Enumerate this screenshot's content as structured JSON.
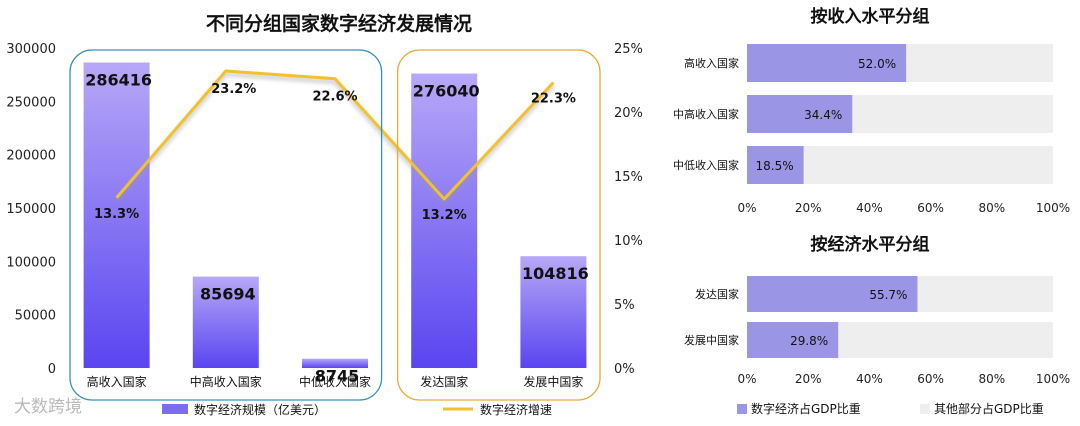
{
  "watermark": "大数跨境",
  "chart_data": [
    {
      "type": "bar",
      "title": "不同分组国家数字经济发展情况",
      "categories": [
        "高收入国家",
        "中高收入国家",
        "中低收入国家",
        "发达国家",
        "发展中国家"
      ],
      "series": [
        {
          "name": "数字经济规模（亿美元）",
          "type": "bar",
          "axis": "left",
          "values": [
            286416,
            85694,
            8745,
            276040,
            104816
          ],
          "labels": [
            "286416",
            "85694",
            "8745",
            "276040",
            "104816"
          ],
          "color": "#7b6cf2"
        },
        {
          "name": "数字经济增速",
          "type": "line",
          "axis": "right",
          "values": [
            13.3,
            23.2,
            22.6,
            13.2,
            22.3
          ],
          "labels": [
            "13.3%",
            "23.2%",
            "22.6%",
            "13.2%",
            "22.3%"
          ],
          "color": "#f2c12e"
        }
      ],
      "ylim": [
        0,
        300000
      ],
      "yticks": [
        "0",
        "50000",
        "100000",
        "150000",
        "200000",
        "250000",
        "300000"
      ],
      "y2lim": [
        0,
        25
      ],
      "y2ticks": [
        "0%",
        "5%",
        "10%",
        "15%",
        "20%",
        "25%"
      ],
      "groups": [
        {
          "members": [
            0,
            1,
            2
          ],
          "color": "#3a8fc2"
        },
        {
          "members": [
            3,
            4
          ],
          "color": "#e8a93a"
        }
      ],
      "legend_position": "bottom"
    },
    {
      "type": "bar",
      "orientation": "horizontal",
      "stacked": true,
      "title": "按收入水平分组",
      "categories": [
        "高收入国家",
        "中高收入国家",
        "中低收入国家"
      ],
      "values": [
        52.0,
        34.4,
        18.5
      ],
      "labels": [
        "52.0%",
        "34.4%",
        "18.5%"
      ],
      "xlim": [
        0,
        100
      ],
      "xticks": [
        "0%",
        "20%",
        "40%",
        "60%",
        "80%",
        "100%"
      ],
      "color": "#9b95e6",
      "rest_color": "#eeeeee"
    },
    {
      "type": "bar",
      "orientation": "horizontal",
      "stacked": true,
      "title": "按经济水平分组",
      "categories": [
        "发达国家",
        "发展中国家"
      ],
      "values": [
        55.7,
        29.8
      ],
      "labels": [
        "55.7%",
        "29.8%"
      ],
      "xlim": [
        0,
        100
      ],
      "xticks": [
        "0%",
        "20%",
        "40%",
        "60%",
        "80%",
        "100%"
      ],
      "color": "#9b95e6",
      "rest_color": "#eeeeee",
      "legend": [
        "数字经济占GDP比重",
        "其他部分占GDP比重"
      ],
      "legend_position": "bottom"
    }
  ]
}
